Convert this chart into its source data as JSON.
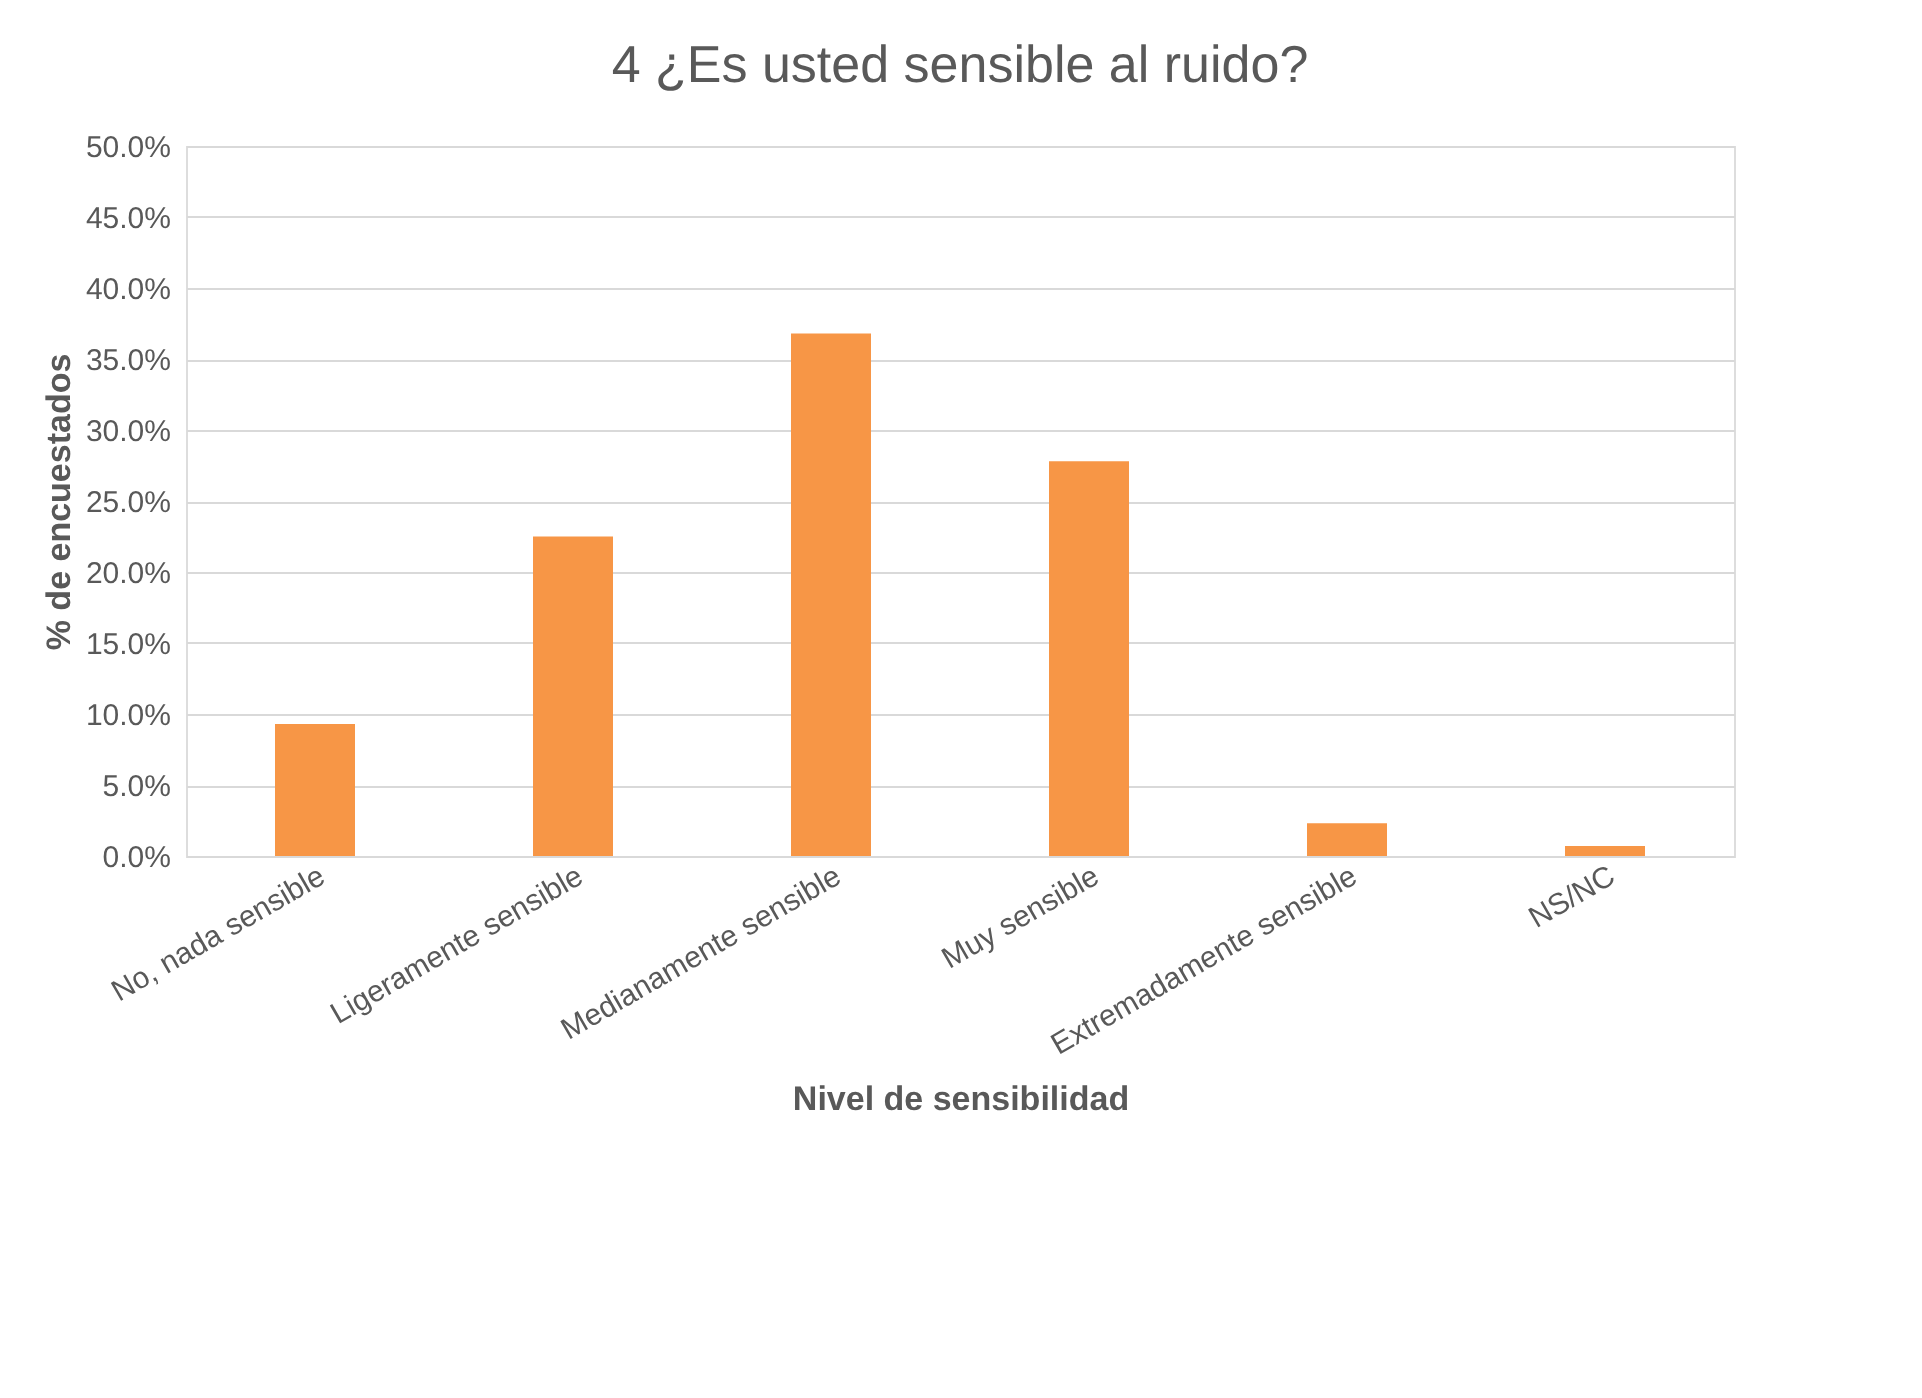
{
  "chart_data": {
    "type": "bar",
    "title": "4 ¿Es usted sensible al ruido?",
    "xlabel": "Nivel de sensibilidad",
    "ylabel": "% de encuestados",
    "categories": [
      "No, nada sensible",
      "Ligeramente sensible",
      "Medianamente sensible",
      "Muy sensible",
      "Extremadamente sensible",
      "NS/NC"
    ],
    "values": [
      9.3,
      22.5,
      36.8,
      27.8,
      2.3,
      0.7
    ],
    "color": "#f79646",
    "ylim": [
      0,
      50
    ],
    "yticks": [
      {
        "value": 0,
        "label": "0.0%"
      },
      {
        "value": 5,
        "label": "5.0%"
      },
      {
        "value": 10,
        "label": "10.0%"
      },
      {
        "value": 15,
        "label": "15.0%"
      },
      {
        "value": 20,
        "label": "20.0%"
      },
      {
        "value": 25,
        "label": "25.0%"
      },
      {
        "value": 30,
        "label": "30.0%"
      },
      {
        "value": 35,
        "label": "35.0%"
      },
      {
        "value": 40,
        "label": "40.0%"
      },
      {
        "value": 45,
        "label": "45.0%"
      },
      {
        "value": 50,
        "label": "50.0%"
      }
    ],
    "grid": "y"
  }
}
